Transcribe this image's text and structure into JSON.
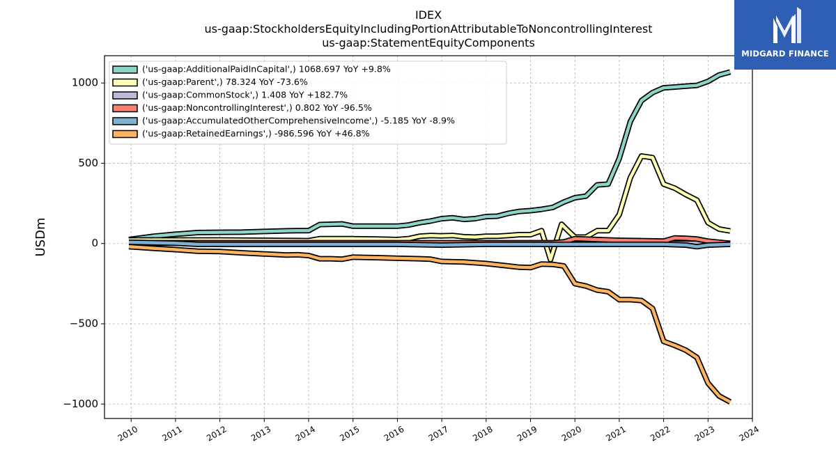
{
  "chart_data": {
    "type": "line",
    "title": [
      "IDEX",
      "us-gaap:StockholdersEquityIncludingPortionAttributableToNoncontrollingInterest",
      "us-gaap:StatementEquityComponents"
    ],
    "xlabel": "",
    "ylabel": "USDm",
    "xlim": [
      2009.4,
      2024.0
    ],
    "ylim": [
      -1090,
      1170
    ],
    "x_ticks": [
      "2010",
      "2011",
      "2012",
      "2013",
      "2014",
      "2015",
      "2016",
      "2017",
      "2018",
      "2019",
      "2020",
      "2021",
      "2022",
      "2023",
      "2024"
    ],
    "y_ticks": [
      1000,
      500,
      0,
      -500,
      -1000
    ],
    "y_tick_labels": [
      "1000",
      "500",
      "0",
      "−500",
      "−1000"
    ],
    "grid": true,
    "legend_position": "top-left",
    "series": [
      {
        "name": "('us-gaap:AdditionalPaidInCapital',) 1068.697 YoY +9.8%",
        "color": "#8dd3c7",
        "points": [
          [
            2009.95,
            25
          ],
          [
            2010.5,
            45
          ],
          [
            2011.0,
            58
          ],
          [
            2011.5,
            68
          ],
          [
            2012.0,
            70
          ],
          [
            2012.5,
            71
          ],
          [
            2013.0,
            75
          ],
          [
            2013.5,
            79
          ],
          [
            2013.75,
            80
          ],
          [
            2014.0,
            80
          ],
          [
            2014.25,
            118
          ],
          [
            2014.5,
            120
          ],
          [
            2014.75,
            122
          ],
          [
            2015.0,
            108
          ],
          [
            2015.5,
            108
          ],
          [
            2016.0,
            108
          ],
          [
            2016.25,
            115
          ],
          [
            2016.5,
            130
          ],
          [
            2016.75,
            140
          ],
          [
            2017.0,
            155
          ],
          [
            2017.25,
            160
          ],
          [
            2017.5,
            150
          ],
          [
            2017.75,
            155
          ],
          [
            2018.0,
            168
          ],
          [
            2018.25,
            170
          ],
          [
            2018.5,
            188
          ],
          [
            2018.75,
            200
          ],
          [
            2019.0,
            205
          ],
          [
            2019.25,
            213
          ],
          [
            2019.5,
            225
          ],
          [
            2019.75,
            258
          ],
          [
            2020.0,
            285
          ],
          [
            2020.25,
            295
          ],
          [
            2020.5,
            365
          ],
          [
            2020.75,
            370
          ],
          [
            2021.0,
            530
          ],
          [
            2021.25,
            760
          ],
          [
            2021.5,
            890
          ],
          [
            2021.75,
            940
          ],
          [
            2022.0,
            970
          ],
          [
            2022.25,
            975
          ],
          [
            2022.5,
            980
          ],
          [
            2022.75,
            985
          ],
          [
            2023.0,
            1010
          ],
          [
            2023.25,
            1050
          ],
          [
            2023.5,
            1069
          ]
        ]
      },
      {
        "name": "('us-gaap:Parent',) 78.324 YoY -73.6%",
        "color": "#ffffb3",
        "points": [
          [
            2009.95,
            22
          ],
          [
            2011.0,
            22
          ],
          [
            2012.0,
            22
          ],
          [
            2013.0,
            20
          ],
          [
            2014.0,
            18
          ],
          [
            2014.25,
            30
          ],
          [
            2014.75,
            30
          ],
          [
            2015.0,
            30
          ],
          [
            2015.5,
            28
          ],
          [
            2016.0,
            25
          ],
          [
            2016.25,
            30
          ],
          [
            2016.5,
            45
          ],
          [
            2016.75,
            50
          ],
          [
            2017.0,
            48
          ],
          [
            2017.25,
            50
          ],
          [
            2017.5,
            42
          ],
          [
            2017.75,
            40
          ],
          [
            2018.0,
            45
          ],
          [
            2018.25,
            45
          ],
          [
            2018.5,
            50
          ],
          [
            2018.75,
            55
          ],
          [
            2019.0,
            55
          ],
          [
            2019.25,
            80
          ],
          [
            2019.45,
            -100
          ],
          [
            2019.7,
            120
          ],
          [
            2019.9,
            65
          ],
          [
            2020.0,
            40
          ],
          [
            2020.25,
            40
          ],
          [
            2020.5,
            80
          ],
          [
            2020.75,
            80
          ],
          [
            2021.0,
            180
          ],
          [
            2021.25,
            410
          ],
          [
            2021.5,
            545
          ],
          [
            2021.75,
            535
          ],
          [
            2022.0,
            370
          ],
          [
            2022.25,
            345
          ],
          [
            2022.5,
            305
          ],
          [
            2022.75,
            270
          ],
          [
            2023.0,
            130
          ],
          [
            2023.25,
            90
          ],
          [
            2023.5,
            78
          ]
        ]
      },
      {
        "name": "('us-gaap:CommonStock',) 1.408 YoY +182.7%",
        "color": "#bebada",
        "points": [
          [
            2009.95,
            2
          ],
          [
            2012.0,
            2
          ],
          [
            2014.0,
            2
          ],
          [
            2016.0,
            2
          ],
          [
            2018.0,
            2
          ],
          [
            2020.0,
            2
          ],
          [
            2022.0,
            2
          ],
          [
            2023.5,
            1.4
          ]
        ]
      },
      {
        "name": "('us-gaap:NoncontrollingInterest',) 0.802 YoY -96.5%",
        "color": "#fb8072",
        "points": [
          [
            2009.95,
            5
          ],
          [
            2012.0,
            5
          ],
          [
            2014.0,
            5
          ],
          [
            2016.0,
            5
          ],
          [
            2018.0,
            5
          ],
          [
            2019.5,
            5
          ],
          [
            2019.75,
            10
          ],
          [
            2020.0,
            30
          ],
          [
            2020.5,
            25
          ],
          [
            2021.0,
            20
          ],
          [
            2021.5,
            18
          ],
          [
            2022.0,
            15
          ],
          [
            2022.25,
            35
          ],
          [
            2022.5,
            32
          ],
          [
            2022.75,
            28
          ],
          [
            2023.0,
            15
          ],
          [
            2023.5,
            0.8
          ]
        ]
      },
      {
        "name": "('us-gaap:AccumulatedOtherComprehensiveIncome',) -5.185 YoY -8.9%",
        "color": "#80b1d3",
        "points": [
          [
            2009.95,
            8
          ],
          [
            2010.5,
            5
          ],
          [
            2011.0,
            2
          ],
          [
            2011.5,
            -5
          ],
          [
            2012.0,
            -5
          ],
          [
            2013.0,
            -5
          ],
          [
            2014.0,
            -5
          ],
          [
            2015.0,
            -5
          ],
          [
            2016.0,
            -5
          ],
          [
            2017.0,
            -10
          ],
          [
            2018.0,
            -5
          ],
          [
            2019.0,
            -5
          ],
          [
            2020.0,
            -5
          ],
          [
            2021.0,
            -5
          ],
          [
            2021.5,
            -5
          ],
          [
            2022.0,
            -5
          ],
          [
            2022.5,
            -10
          ],
          [
            2022.75,
            -20
          ],
          [
            2023.0,
            -10
          ],
          [
            2023.5,
            -5.2
          ]
        ]
      },
      {
        "name": "('us-gaap:RetainedEarnings',) -986.596 YoY +46.8%",
        "color": "#fdb462",
        "points": [
          [
            2009.95,
            -20
          ],
          [
            2010.5,
            -30
          ],
          [
            2011.0,
            -38
          ],
          [
            2011.5,
            -48
          ],
          [
            2012.0,
            -50
          ],
          [
            2012.5,
            -58
          ],
          [
            2013.0,
            -65
          ],
          [
            2013.5,
            -72
          ],
          [
            2013.75,
            -70
          ],
          [
            2014.0,
            -75
          ],
          [
            2014.25,
            -95
          ],
          [
            2014.5,
            -95
          ],
          [
            2014.75,
            -98
          ],
          [
            2015.0,
            -85
          ],
          [
            2015.5,
            -88
          ],
          [
            2016.0,
            -92
          ],
          [
            2016.5,
            -95
          ],
          [
            2016.75,
            -98
          ],
          [
            2017.0,
            -112
          ],
          [
            2017.5,
            -115
          ],
          [
            2018.0,
            -125
          ],
          [
            2018.5,
            -140
          ],
          [
            2018.75,
            -148
          ],
          [
            2019.0,
            -150
          ],
          [
            2019.25,
            -128
          ],
          [
            2019.5,
            -130
          ],
          [
            2019.75,
            -140
          ],
          [
            2020.0,
            -250
          ],
          [
            2020.25,
            -265
          ],
          [
            2020.5,
            -290
          ],
          [
            2020.75,
            -300
          ],
          [
            2021.0,
            -350
          ],
          [
            2021.25,
            -350
          ],
          [
            2021.5,
            -355
          ],
          [
            2021.75,
            -405
          ],
          [
            2022.0,
            -610
          ],
          [
            2022.25,
            -635
          ],
          [
            2022.5,
            -665
          ],
          [
            2022.75,
            -710
          ],
          [
            2023.0,
            -870
          ],
          [
            2023.25,
            -950
          ],
          [
            2023.5,
            -987
          ]
        ]
      }
    ]
  },
  "logo": {
    "text": "MIDGARD FINANCE",
    "background": "#2f5eb5",
    "icon": "midgard-m-icon"
  }
}
